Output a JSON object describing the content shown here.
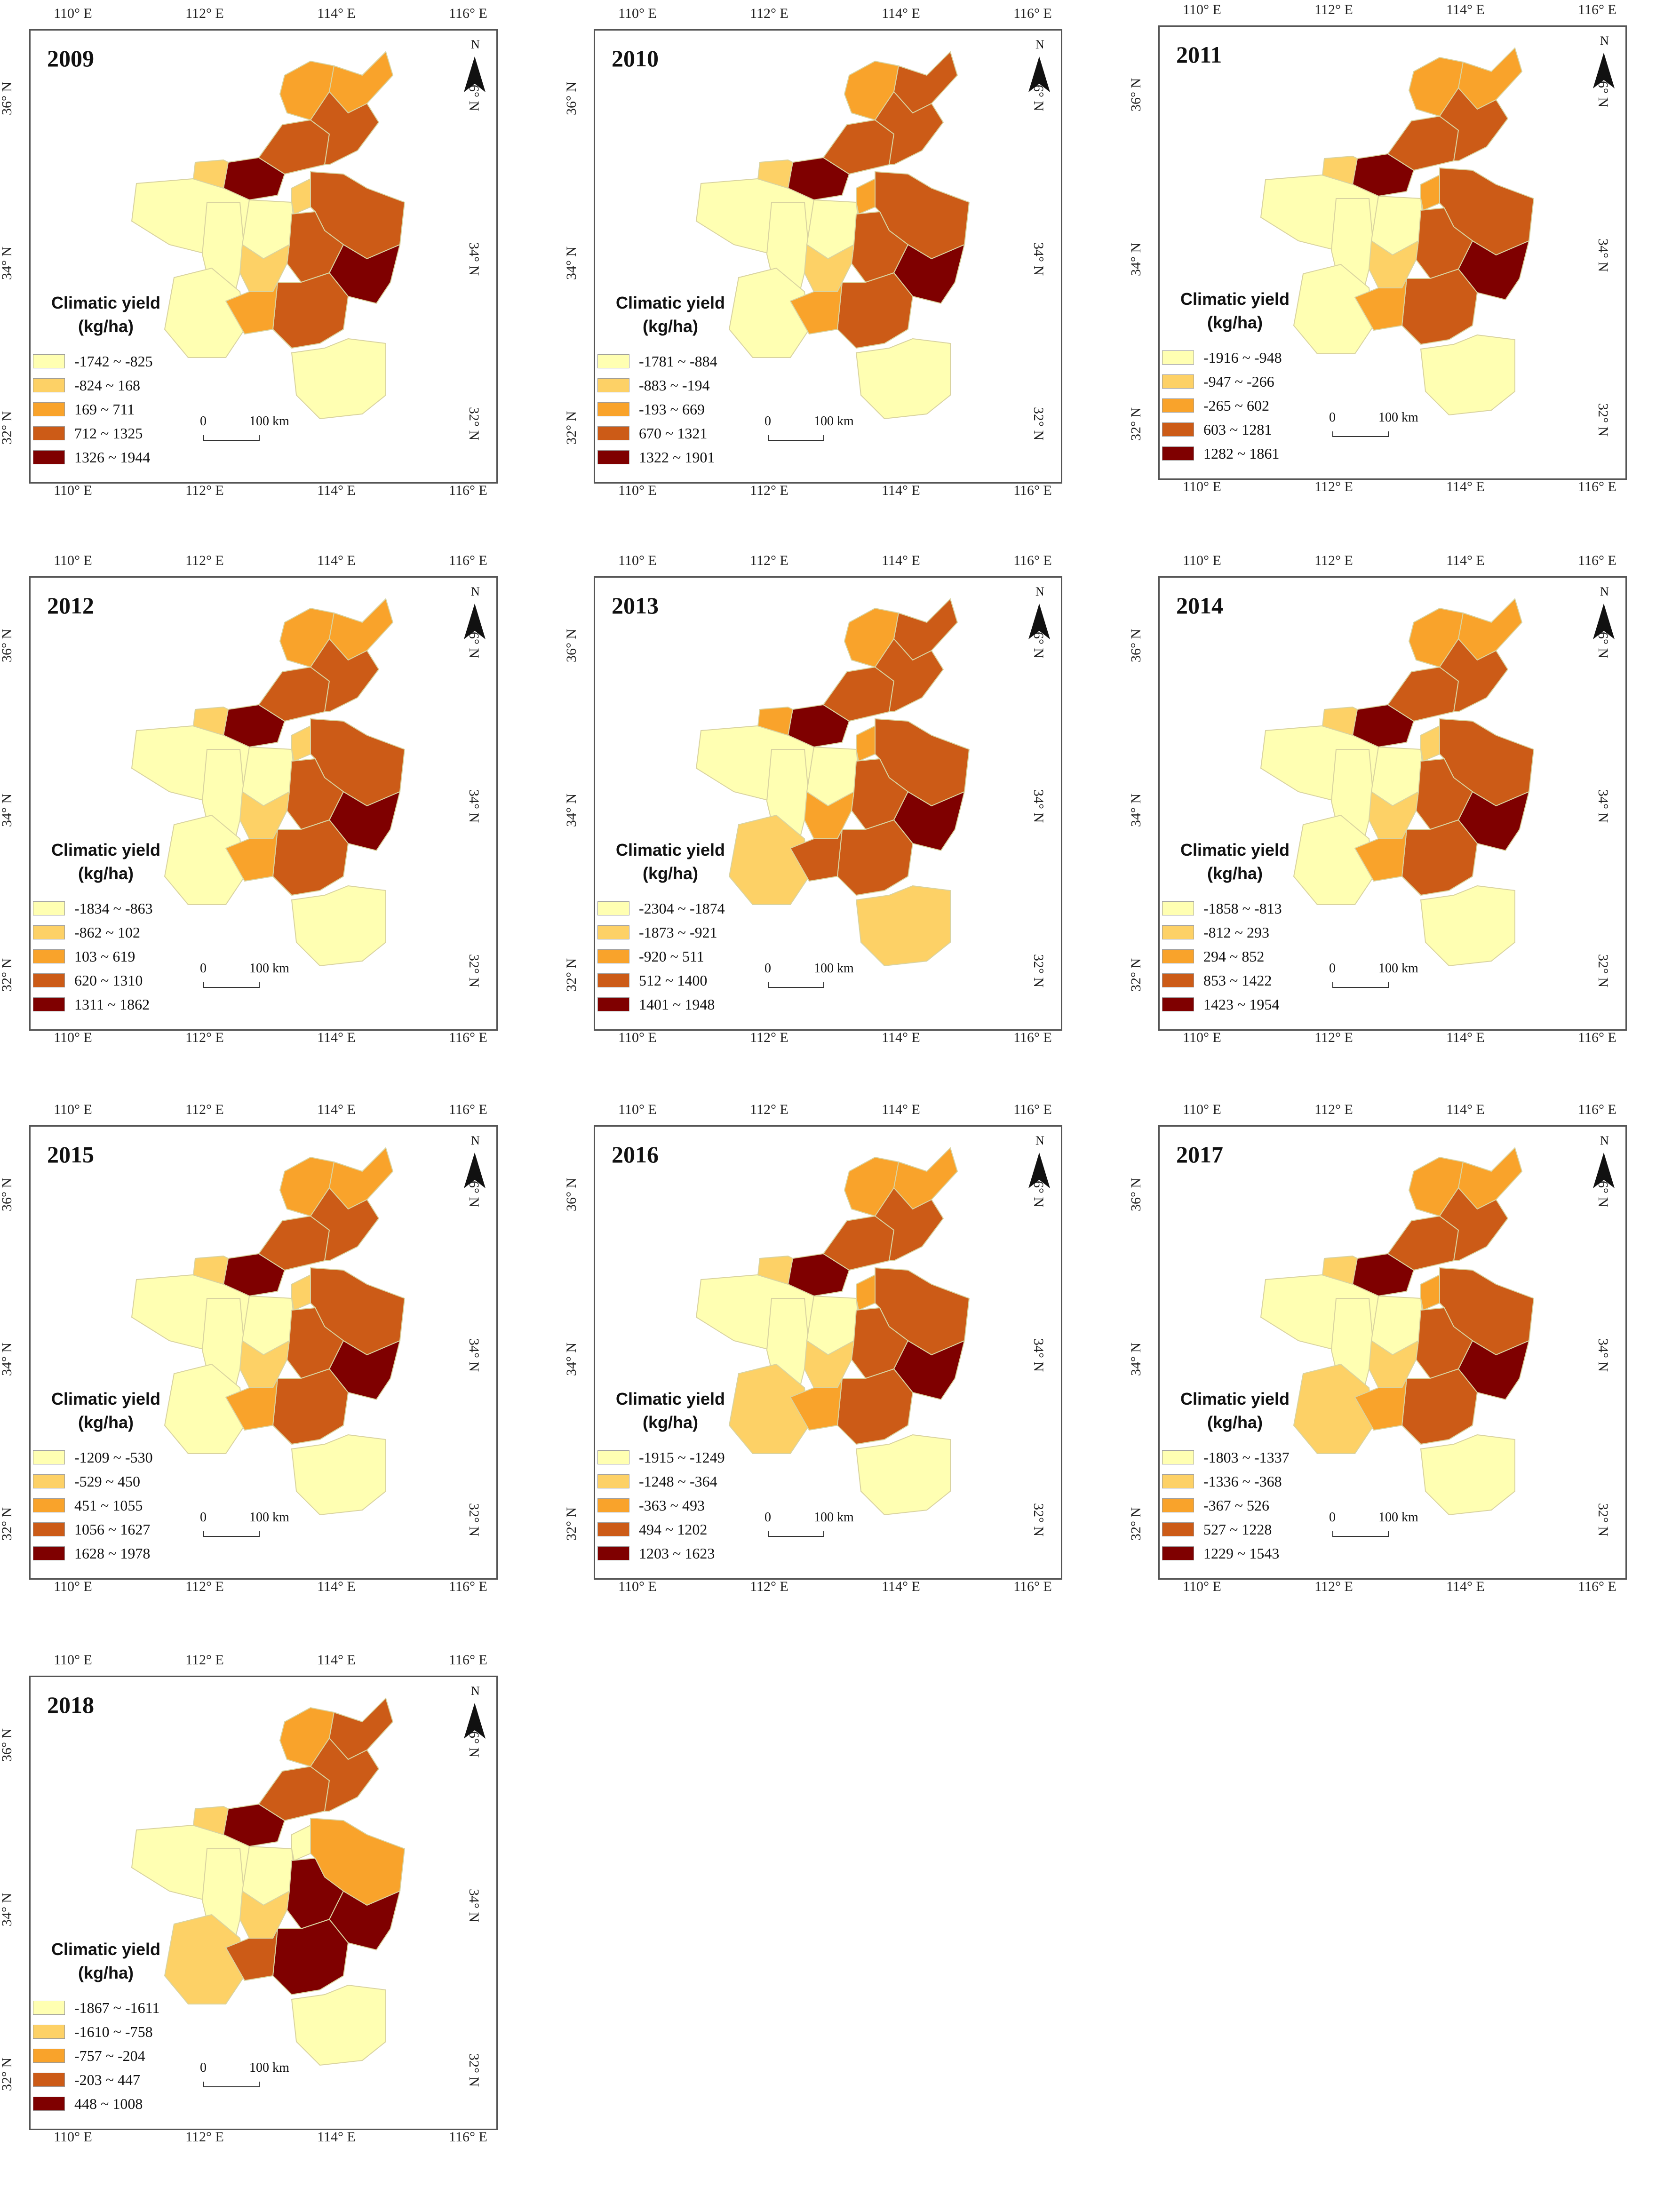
{
  "figure": {
    "legend_title_line1": "Climatic yield",
    "legend_title_line2": "(kg/ha)",
    "scale_zero": "0",
    "scale_label": "100 km",
    "north_label": "N",
    "lon_ticks": [
      "110° E",
      "112° E",
      "114° E",
      "116° E"
    ],
    "lat_ticks": [
      "36° N",
      "34° N",
      "32° N"
    ],
    "class_colors": [
      "#ffffb2",
      "#fdd166",
      "#f9a32b",
      "#cc5b17",
      "#7f0000"
    ]
  },
  "panels": [
    {
      "year": "2009",
      "classes": [
        "-1742 ~ -825",
        "-824 ~ 168",
        "169 ~ 711",
        "712 ~ 1325",
        "1326 ~ 1944"
      ],
      "region_classes": [
        4,
        3,
        2,
        2,
        3,
        1,
        0,
        0,
        0,
        0,
        1,
        3,
        3,
        4,
        3,
        1,
        2,
        0
      ]
    },
    {
      "year": "2010",
      "classes": [
        "-1781 ~ -884",
        "-883 ~ -194",
        "-193 ~ 669",
        "670 ~ 1321",
        "1322 ~ 1901"
      ],
      "region_classes": [
        4,
        3,
        2,
        3,
        3,
        1,
        0,
        0,
        0,
        0,
        2,
        3,
        3,
        4,
        3,
        1,
        2,
        0
      ]
    },
    {
      "year": "2011",
      "classes": [
        "-1916 ~ -948",
        "-947 ~ -266",
        "-265 ~ 602",
        "603 ~ 1281",
        "1282 ~ 1861"
      ],
      "region_classes": [
        4,
        3,
        2,
        2,
        3,
        1,
        0,
        0,
        0,
        0,
        2,
        3,
        3,
        4,
        3,
        1,
        2,
        0
      ]
    },
    {
      "year": "2012",
      "classes": [
        "-1834 ~ -863",
        "-862 ~ 102",
        "103 ~ 619",
        "620 ~ 1310",
        "1311 ~ 1862"
      ],
      "region_classes": [
        4,
        3,
        2,
        2,
        3,
        1,
        0,
        0,
        0,
        0,
        1,
        3,
        3,
        4,
        3,
        1,
        2,
        0
      ]
    },
    {
      "year": "2013",
      "classes": [
        "-2304 ~ -1874",
        "-1873 ~ -921",
        "-920 ~ 511",
        "512 ~ 1400",
        "1401 ~ 1948"
      ],
      "region_classes": [
        4,
        3,
        2,
        3,
        3,
        2,
        0,
        0,
        0,
        1,
        2,
        3,
        3,
        4,
        3,
        2,
        3,
        1
      ]
    },
    {
      "year": "2014",
      "classes": [
        "-1858 ~ -813",
        "-812 ~ 293",
        "294 ~ 852",
        "853 ~ 1422",
        "1423 ~ 1954"
      ],
      "region_classes": [
        4,
        3,
        2,
        2,
        3,
        1,
        0,
        0,
        0,
        0,
        1,
        3,
        3,
        4,
        3,
        1,
        2,
        0
      ]
    },
    {
      "year": "2015",
      "classes": [
        "-1209 ~ -530",
        "-529 ~ 450",
        "451 ~ 1055",
        "1056 ~ 1627",
        "1628 ~ 1978"
      ],
      "region_classes": [
        4,
        3,
        2,
        2,
        3,
        1,
        0,
        0,
        0,
        0,
        1,
        3,
        3,
        4,
        3,
        1,
        2,
        0
      ]
    },
    {
      "year": "2016",
      "classes": [
        "-1915 ~ -1249",
        "-1248 ~ -364",
        "-363 ~ 493",
        "494 ~ 1202",
        "1203 ~ 1623"
      ],
      "region_classes": [
        4,
        3,
        2,
        2,
        3,
        1,
        0,
        0,
        0,
        1,
        2,
        3,
        3,
        4,
        3,
        1,
        2,
        0
      ]
    },
    {
      "year": "2017",
      "classes": [
        "-1803 ~ -1337",
        "-1336 ~ -368",
        "-367 ~ 526",
        "527 ~ 1228",
        "1229 ~ 1543"
      ],
      "region_classes": [
        4,
        3,
        2,
        2,
        3,
        1,
        0,
        0,
        0,
        1,
        2,
        3,
        3,
        4,
        3,
        1,
        2,
        0
      ]
    },
    {
      "year": "2018",
      "classes": [
        "-1867 ~ -1611",
        "-1610 ~ -758",
        "-757 ~ -204",
        "-203 ~ 447",
        "448 ~ 1008"
      ],
      "region_classes": [
        4,
        3,
        2,
        3,
        3,
        1,
        0,
        0,
        0,
        1,
        0,
        2,
        4,
        4,
        4,
        1,
        3,
        0
      ]
    }
  ]
}
